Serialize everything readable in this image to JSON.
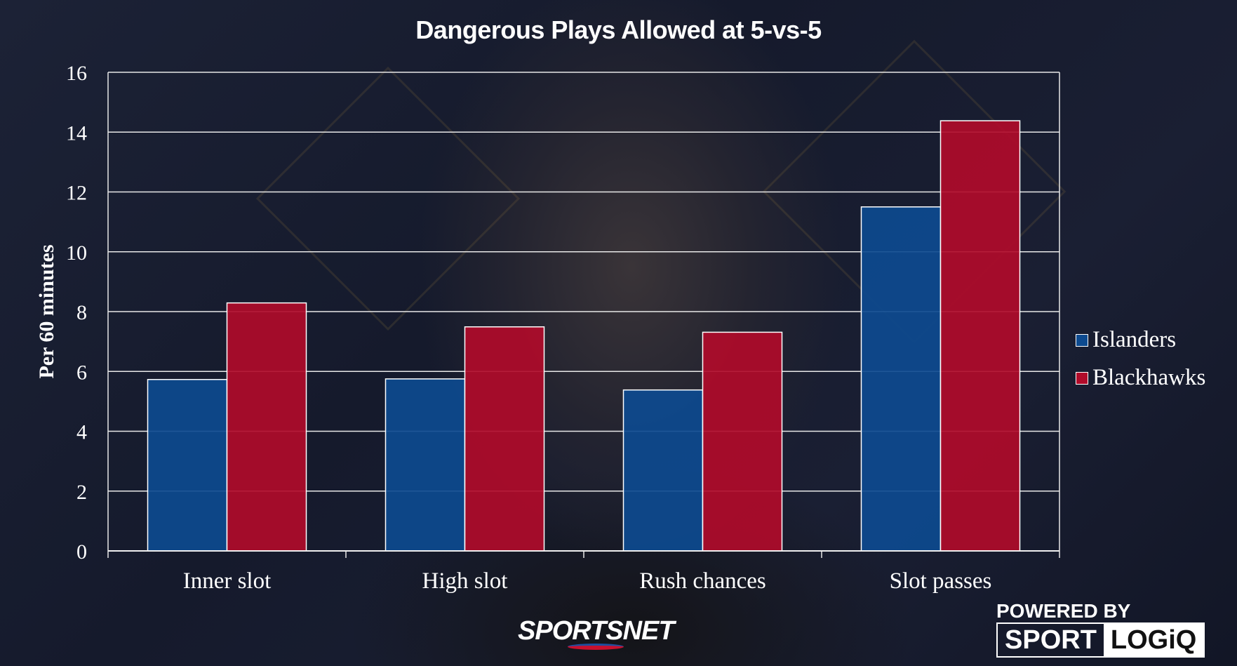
{
  "chart_data": {
    "type": "bar",
    "title": "Dangerous Plays Allowed at 5-vs-5",
    "xlabel": "",
    "ylabel": "Per 60 minutes",
    "ylim": [
      0,
      16
    ],
    "yticks": [
      "0",
      "2",
      "4",
      "6",
      "8",
      "10",
      "12",
      "14",
      "16"
    ],
    "grid": true,
    "legend_position": "right",
    "categories": [
      "Inner slot",
      "High slot",
      "Rush chances",
      "Slot passes"
    ],
    "series": [
      {
        "name": "Islanders",
        "color": "#0d4a8f",
        "values": [
          5.73,
          5.75,
          5.38,
          11.5
        ]
      },
      {
        "name": "Blackhawks",
        "color": "#b00b2a",
        "values": [
          8.29,
          7.49,
          7.31,
          14.38
        ]
      }
    ]
  },
  "branding": {
    "sportsnet": "SPORTSNET",
    "powered_by": "POWERED BY",
    "logo_left": "SPORT",
    "logo_right": "LOGiQ"
  }
}
